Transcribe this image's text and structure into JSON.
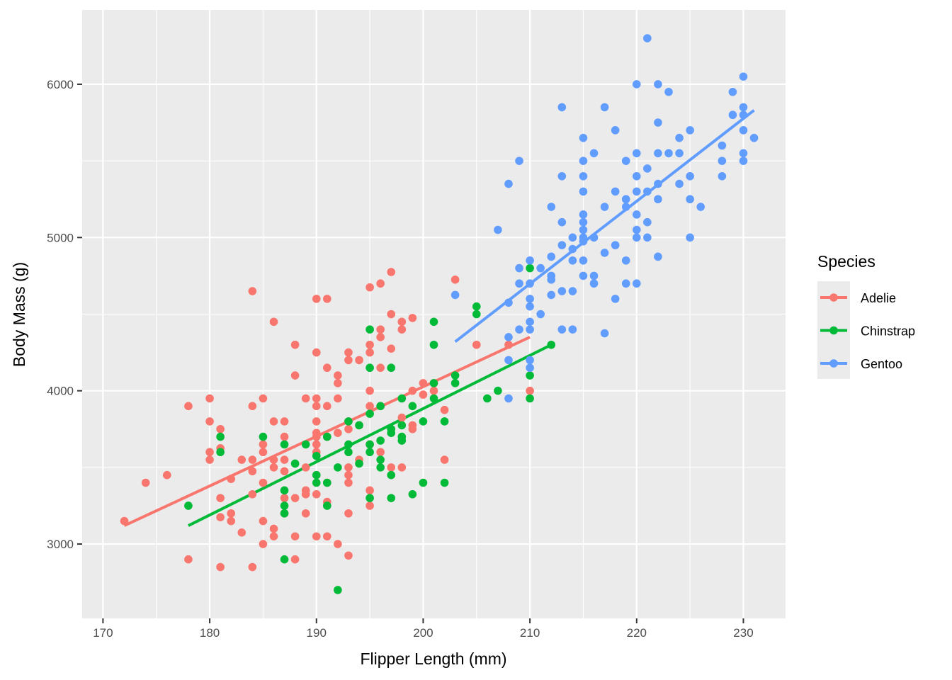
{
  "chart_data": {
    "type": "scatter",
    "title": "",
    "xlabel": "Flipper Length (mm)",
    "ylabel": "Body Mass (g)",
    "xlim": [
      168.05,
      233.95
    ],
    "ylim": [
      2515,
      6485
    ],
    "x_ticks": [
      170,
      180,
      190,
      200,
      210,
      220,
      230
    ],
    "y_ticks": [
      3000,
      4000,
      5000,
      6000
    ],
    "x_tick_labels": [
      "170",
      "180",
      "190",
      "200",
      "210",
      "220",
      "230"
    ],
    "y_tick_labels": [
      "3000",
      "4000",
      "5000",
      "6000"
    ],
    "grid": true,
    "background": "#EBEBEB",
    "legend": {
      "title": "Species",
      "position": "right"
    },
    "series": [
      {
        "name": "Adelie",
        "color": "#F8766D",
        "trend": [
          [
            172,
            3120
          ],
          [
            210,
            4350
          ]
        ],
        "points": [
          [
            172,
            3150
          ],
          [
            174,
            3400
          ],
          [
            176,
            3450
          ],
          [
            178,
            3900
          ],
          [
            178,
            2900
          ],
          [
            180,
            3950
          ],
          [
            180,
            3800
          ],
          [
            180,
            3600
          ],
          [
            180,
            3550
          ],
          [
            181,
            3750
          ],
          [
            181,
            3625
          ],
          [
            181,
            3300
          ],
          [
            181,
            3175
          ],
          [
            181,
            2850
          ],
          [
            182,
            3425
          ],
          [
            182,
            3200
          ],
          [
            182,
            3150
          ],
          [
            183,
            3550
          ],
          [
            183,
            3075
          ],
          [
            184,
            4650
          ],
          [
            184,
            3900
          ],
          [
            184,
            3550
          ],
          [
            184,
            3475
          ],
          [
            184,
            3325
          ],
          [
            184,
            2850
          ],
          [
            185,
            3950
          ],
          [
            185,
            3650
          ],
          [
            185,
            3600
          ],
          [
            185,
            3400
          ],
          [
            185,
            3150
          ],
          [
            185,
            3000
          ],
          [
            186,
            4450
          ],
          [
            186,
            3800
          ],
          [
            186,
            3550
          ],
          [
            186,
            3500
          ],
          [
            186,
            3100
          ],
          [
            186,
            3050
          ],
          [
            187,
            3800
          ],
          [
            187,
            3700
          ],
          [
            187,
            3550
          ],
          [
            187,
            3475
          ],
          [
            187,
            3300
          ],
          [
            187,
            3200
          ],
          [
            188,
            4300
          ],
          [
            188,
            4100
          ],
          [
            188,
            3300
          ],
          [
            188,
            3050
          ],
          [
            188,
            2900
          ],
          [
            189,
            3950
          ],
          [
            189,
            3500
          ],
          [
            189,
            3350
          ],
          [
            189,
            3325
          ],
          [
            189,
            3200
          ],
          [
            190,
            4600
          ],
          [
            190,
            4250
          ],
          [
            190,
            3950
          ],
          [
            190,
            3900
          ],
          [
            190,
            3800
          ],
          [
            190,
            3725
          ],
          [
            190,
            3700
          ],
          [
            190,
            3650
          ],
          [
            190,
            3600
          ],
          [
            190,
            3450
          ],
          [
            190,
            3325
          ],
          [
            190,
            3050
          ],
          [
            191,
            4600
          ],
          [
            191,
            4150
          ],
          [
            191,
            3900
          ],
          [
            191,
            3700
          ],
          [
            191,
            3400
          ],
          [
            191,
            3275
          ],
          [
            191,
            3050
          ],
          [
            192,
            4100
          ],
          [
            192,
            4050
          ],
          [
            192,
            3950
          ],
          [
            192,
            3725
          ],
          [
            192,
            3000
          ],
          [
            193,
            4250
          ],
          [
            193,
            4200
          ],
          [
            193,
            3800
          ],
          [
            193,
            3750
          ],
          [
            193,
            3500
          ],
          [
            193,
            3450
          ],
          [
            193,
            3400
          ],
          [
            193,
            3200
          ],
          [
            193,
            2925
          ],
          [
            194,
            4200
          ],
          [
            194,
            3775
          ],
          [
            194,
            3550
          ],
          [
            195,
            4675
          ],
          [
            195,
            4300
          ],
          [
            195,
            4250
          ],
          [
            195,
            4000
          ],
          [
            195,
            3900
          ],
          [
            195,
            3650
          ],
          [
            195,
            3350
          ],
          [
            195,
            3250
          ],
          [
            196,
            4700
          ],
          [
            196,
            4400
          ],
          [
            196,
            4350
          ],
          [
            196,
            4150
          ],
          [
            196,
            3900
          ],
          [
            196,
            3600
          ],
          [
            197,
            4775
          ],
          [
            197,
            4500
          ],
          [
            197,
            4275
          ],
          [
            197,
            3500
          ],
          [
            198,
            4450
          ],
          [
            198,
            4400
          ],
          [
            198,
            3825
          ],
          [
            198,
            3500
          ],
          [
            199,
            4475
          ],
          [
            199,
            4000
          ],
          [
            199,
            3775
          ],
          [
            199,
            3750
          ],
          [
            200,
            4050
          ],
          [
            200,
            3975
          ],
          [
            201,
            4000
          ],
          [
            201,
            4050
          ],
          [
            202,
            3875
          ],
          [
            202,
            3550
          ],
          [
            203,
            4725
          ],
          [
            205,
            4300
          ],
          [
            208,
            4300
          ],
          [
            210,
            4000
          ]
        ]
      },
      {
        "name": "Chinstrap",
        "color": "#00BA38",
        "trend": [
          [
            178,
            3120
          ],
          [
            212,
            4300
          ]
        ],
        "points": [
          [
            178,
            3250
          ],
          [
            181,
            3700
          ],
          [
            181,
            3600
          ],
          [
            185,
            3700
          ],
          [
            187,
            3650
          ],
          [
            187,
            3350
          ],
          [
            187,
            3250
          ],
          [
            187,
            3200
          ],
          [
            187,
            2900
          ],
          [
            188,
            3525
          ],
          [
            189,
            3650
          ],
          [
            190,
            3575
          ],
          [
            190,
            3450
          ],
          [
            190,
            3400
          ],
          [
            191,
            3700
          ],
          [
            191,
            3400
          ],
          [
            191,
            3250
          ],
          [
            192,
            3500
          ],
          [
            192,
            2700
          ],
          [
            193,
            3800
          ],
          [
            193,
            3650
          ],
          [
            193,
            3600
          ],
          [
            194,
            3775
          ],
          [
            194,
            3525
          ],
          [
            195,
            4400
          ],
          [
            195,
            4150
          ],
          [
            195,
            3850
          ],
          [
            195,
            3650
          ],
          [
            195,
            3600
          ],
          [
            195,
            3300
          ],
          [
            196,
            3900
          ],
          [
            196,
            3675
          ],
          [
            196,
            3550
          ],
          [
            196,
            3500
          ],
          [
            197,
            4150
          ],
          [
            197,
            3750
          ],
          [
            197,
            3725
          ],
          [
            197,
            3450
          ],
          [
            197,
            3300
          ],
          [
            198,
            3950
          ],
          [
            198,
            3775
          ],
          [
            198,
            3700
          ],
          [
            198,
            3675
          ],
          [
            199,
            3900
          ],
          [
            199,
            3325
          ],
          [
            200,
            3800
          ],
          [
            200,
            3400
          ],
          [
            201,
            4450
          ],
          [
            201,
            4300
          ],
          [
            201,
            4050
          ],
          [
            201,
            3950
          ],
          [
            202,
            3800
          ],
          [
            202,
            3400
          ],
          [
            203,
            4100
          ],
          [
            203,
            4050
          ],
          [
            205,
            4550
          ],
          [
            205,
            4500
          ],
          [
            206,
            3950
          ],
          [
            207,
            4000
          ],
          [
            210,
            4800
          ],
          [
            210,
            4100
          ],
          [
            210,
            3950
          ],
          [
            212,
            4300
          ]
        ]
      },
      {
        "name": "Gentoo",
        "color": "#619CFF",
        "trend": [
          [
            203,
            4320
          ],
          [
            231,
            5830
          ]
        ],
        "points": [
          [
            203,
            4625
          ],
          [
            207,
            5050
          ],
          [
            208,
            5350
          ],
          [
            208,
            4575
          ],
          [
            208,
            4350
          ],
          [
            208,
            4200
          ],
          [
            208,
            3950
          ],
          [
            209,
            5500
          ],
          [
            209,
            4800
          ],
          [
            209,
            4700
          ],
          [
            209,
            4400
          ],
          [
            210,
            4850
          ],
          [
            210,
            4700
          ],
          [
            210,
            4600
          ],
          [
            210,
            4550
          ],
          [
            210,
            4450
          ],
          [
            210,
            4400
          ],
          [
            210,
            4200
          ],
          [
            210,
            4150
          ],
          [
            211,
            4800
          ],
          [
            211,
            4500
          ],
          [
            212,
            5200
          ],
          [
            212,
            4875
          ],
          [
            212,
            4750
          ],
          [
            212,
            4725
          ],
          [
            212,
            4625
          ],
          [
            213,
            5850
          ],
          [
            213,
            5400
          ],
          [
            213,
            5100
          ],
          [
            213,
            4950
          ],
          [
            213,
            4650
          ],
          [
            213,
            4400
          ],
          [
            214,
            5000
          ],
          [
            214,
            4925
          ],
          [
            214,
            4850
          ],
          [
            214,
            4650
          ],
          [
            214,
            4400
          ],
          [
            215,
            5650
          ],
          [
            215,
            5500
          ],
          [
            215,
            5400
          ],
          [
            215,
            5300
          ],
          [
            215,
            5150
          ],
          [
            215,
            5100
          ],
          [
            215,
            5050
          ],
          [
            215,
            5000
          ],
          [
            215,
            4975
          ],
          [
            215,
            4850
          ],
          [
            215,
            4750
          ],
          [
            216,
            5550
          ],
          [
            216,
            5000
          ],
          [
            216,
            4750
          ],
          [
            216,
            4700
          ],
          [
            217,
            5850
          ],
          [
            217,
            5200
          ],
          [
            217,
            4900
          ],
          [
            217,
            4375
          ],
          [
            218,
            5700
          ],
          [
            218,
            5300
          ],
          [
            218,
            4950
          ],
          [
            218,
            4600
          ],
          [
            219,
            5500
          ],
          [
            219,
            5250
          ],
          [
            219,
            5200
          ],
          [
            219,
            4850
          ],
          [
            219,
            4700
          ],
          [
            220,
            6000
          ],
          [
            220,
            5550
          ],
          [
            220,
            5400
          ],
          [
            220,
            5300
          ],
          [
            220,
            5150
          ],
          [
            220,
            5050
          ],
          [
            220,
            5000
          ],
          [
            220,
            4700
          ],
          [
            221,
            6300
          ],
          [
            221,
            5450
          ],
          [
            221,
            5300
          ],
          [
            221,
            5100
          ],
          [
            221,
            5000
          ],
          [
            222,
            6000
          ],
          [
            222,
            5750
          ],
          [
            222,
            5550
          ],
          [
            222,
            5350
          ],
          [
            222,
            5250
          ],
          [
            222,
            4875
          ],
          [
            223,
            5950
          ],
          [
            223,
            5550
          ],
          [
            224,
            5650
          ],
          [
            224,
            5550
          ],
          [
            224,
            5350
          ],
          [
            225,
            5700
          ],
          [
            225,
            5400
          ],
          [
            225,
            5250
          ],
          [
            225,
            5000
          ],
          [
            226,
            5200
          ],
          [
            228,
            5600
          ],
          [
            228,
            5500
          ],
          [
            228,
            5400
          ],
          [
            229,
            5950
          ],
          [
            229,
            5800
          ],
          [
            230,
            6050
          ],
          [
            230,
            5850
          ],
          [
            230,
            5800
          ],
          [
            230,
            5700
          ],
          [
            230,
            5550
          ],
          [
            230,
            5500
          ],
          [
            231,
            5650
          ]
        ]
      }
    ]
  }
}
